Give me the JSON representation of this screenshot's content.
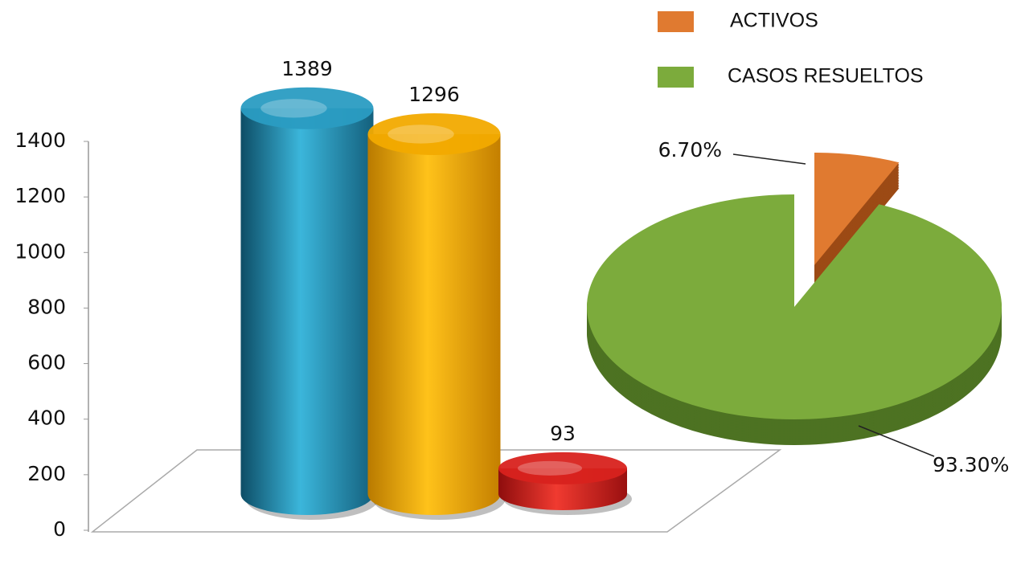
{
  "chart_data": [
    {
      "type": "bar",
      "values": [
        1389,
        1296,
        93
      ],
      "colors": [
        "#2a9cc2",
        "#f2aa00",
        "#d8221e"
      ],
      "ylim": [
        0,
        1400
      ],
      "yticks": [
        0,
        200,
        400,
        600,
        800,
        1000,
        1200,
        1400
      ]
    },
    {
      "type": "pie",
      "categories": [
        "ACTIVOS",
        "CASOS RESUELTOS"
      ],
      "values": [
        6.7,
        93.3
      ],
      "value_labels": [
        "6.70%",
        "93.30%"
      ],
      "colors": [
        "#e07a30",
        "#7cab3c"
      ],
      "legend": "top-right"
    }
  ]
}
